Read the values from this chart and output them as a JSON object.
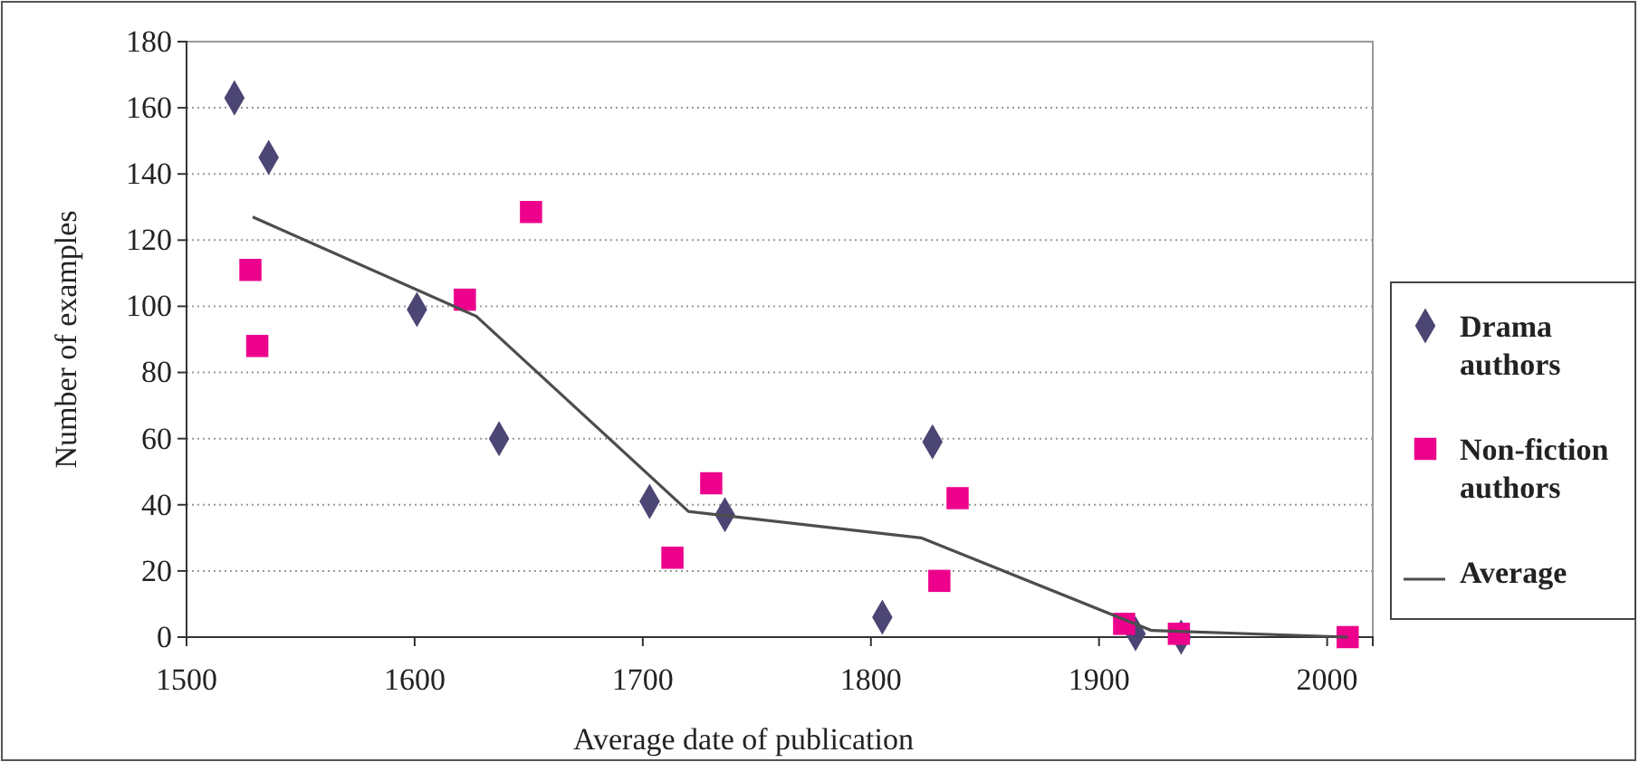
{
  "chart_data": {
    "type": "scatter",
    "xlabel": "Average date of publication",
    "ylabel": "Number of examples",
    "xlim": [
      1500,
      2020
    ],
    "xticks": [
      1500,
      1600,
      1700,
      1800,
      1900,
      2000
    ],
    "ylim": [
      0,
      180
    ],
    "yticks": [
      0,
      20,
      40,
      60,
      80,
      100,
      120,
      140,
      160,
      180
    ],
    "grid": "y",
    "legend": "right",
    "series": [
      {
        "name": "Drama authors",
        "color": "#4b4674",
        "marker": "diamond",
        "x": [
          1521,
          1536,
          1601,
          1637,
          1703,
          1736,
          1805,
          1827,
          1916,
          1936
        ],
        "values": [
          163,
          145,
          99,
          60,
          41,
          37,
          6,
          59,
          1,
          0
        ]
      },
      {
        "name": "Non-fiction authors",
        "color": "#ec008c",
        "marker": "square",
        "x": [
          1528,
          1531,
          1622,
          1651,
          1713,
          1730,
          1830,
          1838,
          1911,
          1935,
          2009
        ],
        "values": [
          111,
          88,
          102,
          128.5,
          24,
          46.5,
          17,
          42,
          4,
          1,
          0
        ]
      },
      {
        "name": "Average",
        "type": "line",
        "color": "#4d4d4d",
        "marker": "none",
        "x": [
          1529,
          1627,
          1720,
          1822,
          1923,
          2009
        ],
        "values": [
          127,
          97,
          38,
          30,
          2,
          0
        ]
      }
    ]
  }
}
